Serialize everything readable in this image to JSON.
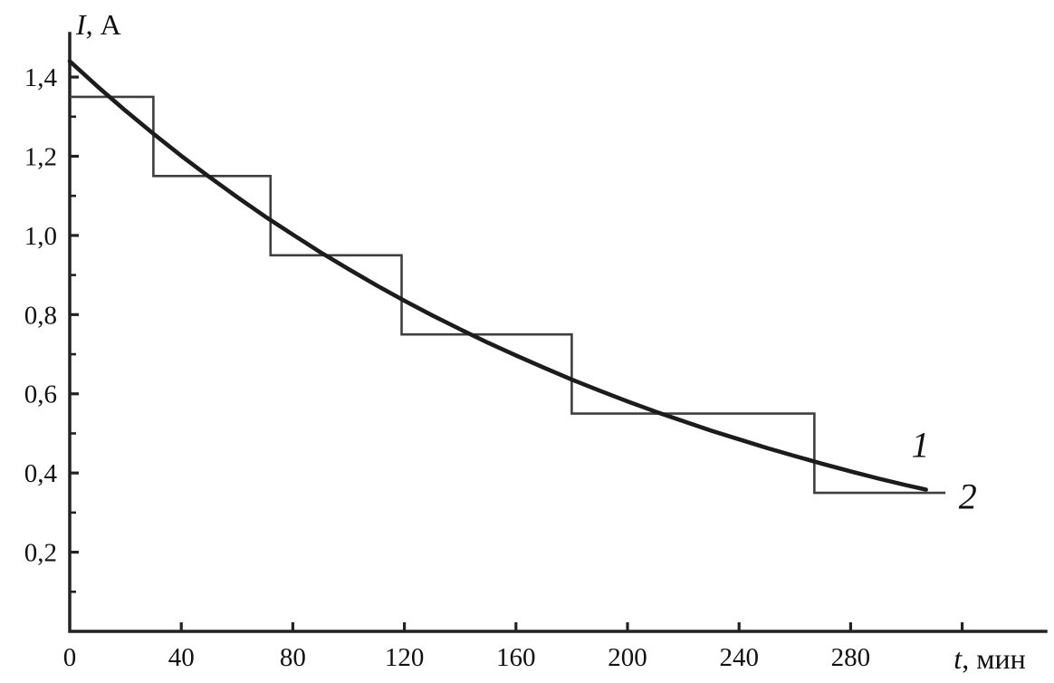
{
  "figure": {
    "y_axis_title_italic": "I",
    "y_axis_title_rest": ", А",
    "x_axis_title_italic": "t",
    "x_axis_title_rest": ", мин",
    "line_color": "#1c1c1c",
    "step_color": "#3f3f3f",
    "axis_color": "#222222",
    "background": "#ffffff"
  },
  "chart_data": {
    "type": "line",
    "title": "",
    "xlabel": "t, мин",
    "ylabel": "I, А",
    "xlim": [
      0,
      350
    ],
    "ylim": [
      0,
      1.51
    ],
    "grid": false,
    "legend_position": "none",
    "x_ticks": {
      "labeled": [
        {
          "v": 0,
          "label": "0"
        },
        {
          "v": 40,
          "label": "40"
        },
        {
          "v": 80,
          "label": "80"
        },
        {
          "v": 120,
          "label": "120"
        },
        {
          "v": 160,
          "label": "160"
        },
        {
          "v": 200,
          "label": "200"
        },
        {
          "v": 240,
          "label": "240"
        },
        {
          "v": 280,
          "label": "280"
        }
      ],
      "marks": [
        40,
        80,
        120,
        160,
        200,
        240,
        280,
        320
      ]
    },
    "y_ticks": {
      "major": [
        {
          "v": 0.2,
          "label": "0,2"
        },
        {
          "v": 0.4,
          "label": "0,4"
        },
        {
          "v": 0.6,
          "label": "0,6"
        },
        {
          "v": 0.8,
          "label": "0,8"
        },
        {
          "v": 1.0,
          "label": "1,0"
        },
        {
          "v": 1.2,
          "label": "1,2"
        },
        {
          "v": 1.4,
          "label": "1,4"
        }
      ],
      "minor": [
        0.1,
        0.3,
        0.5,
        0.7,
        0.9,
        1.1,
        1.3
      ]
    },
    "series": [
      {
        "name": "1",
        "kind": "smooth",
        "description": "continuous discharge current curve, I = 1.44·exp(-t/220)",
        "points": [
          [
            0,
            1.44
          ],
          [
            10,
            1.376
          ],
          [
            20,
            1.315
          ],
          [
            30,
            1.257
          ],
          [
            40,
            1.201
          ],
          [
            50,
            1.148
          ],
          [
            60,
            1.097
          ],
          [
            70,
            1.048
          ],
          [
            80,
            1.002
          ],
          [
            90,
            0.957
          ],
          [
            100,
            0.915
          ],
          [
            110,
            0.874
          ],
          [
            120,
            0.835
          ],
          [
            130,
            0.798
          ],
          [
            140,
            0.763
          ],
          [
            150,
            0.729
          ],
          [
            160,
            0.697
          ],
          [
            170,
            0.666
          ],
          [
            180,
            0.636
          ],
          [
            190,
            0.608
          ],
          [
            200,
            0.581
          ],
          [
            210,
            0.555
          ],
          [
            220,
            0.531
          ],
          [
            230,
            0.507
          ],
          [
            240,
            0.485
          ],
          [
            250,
            0.463
          ],
          [
            260,
            0.443
          ],
          [
            270,
            0.423
          ],
          [
            280,
            0.404
          ],
          [
            290,
            0.386
          ],
          [
            300,
            0.369
          ],
          [
            307,
            0.358
          ]
        ]
      },
      {
        "name": "2",
        "kind": "step",
        "description": "stepwise discharge current",
        "segments": [
          {
            "t_start": 0,
            "t_end": 30,
            "value": 1.35
          },
          {
            "t_start": 30,
            "t_end": 72,
            "value": 1.15
          },
          {
            "t_start": 72,
            "t_end": 119,
            "value": 0.95
          },
          {
            "t_start": 119,
            "t_end": 180,
            "value": 0.75
          },
          {
            "t_start": 180,
            "t_end": 267,
            "value": 0.55
          },
          {
            "t_start": 267,
            "t_end": 314,
            "value": 0.35
          }
        ]
      }
    ],
    "series_labels": [
      {
        "text": "1",
        "t": 305,
        "value": 0.47
      },
      {
        "text": "2",
        "t": 322,
        "value": 0.34
      }
    ]
  }
}
